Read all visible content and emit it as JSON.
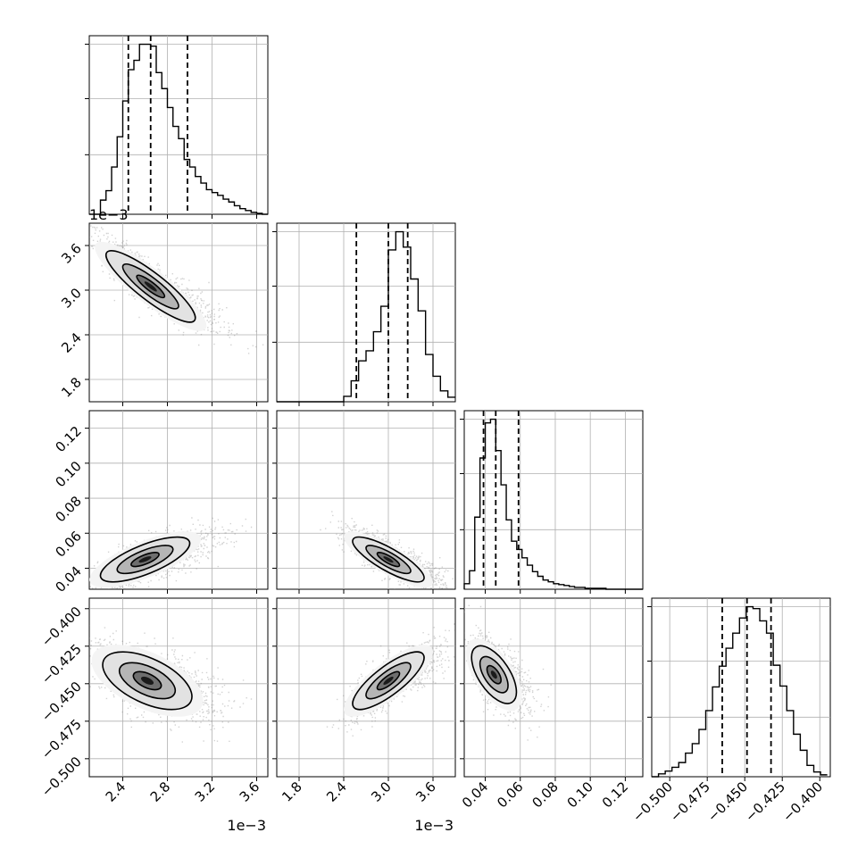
{
  "figure": {
    "offset_labels": {
      "x0": "1e−3",
      "x1": "1e−3",
      "y1": "1e−3"
    }
  },
  "chart_data": {
    "type": "corner",
    "grid": true,
    "colors": {
      "line": "#000000",
      "grid": "#b0b0b0",
      "scatter": "#7f7f7f"
    },
    "params": [
      {
        "range": [
          2.1,
          3.7
        ],
        "ticks": [
          2.4,
          2.8,
          3.2,
          3.6
        ],
        "tick_labels": [
          "2.4",
          "2.8",
          "3.2",
          "3.6"
        ],
        "offset": "1e−3",
        "quantiles": [
          2.45,
          2.65,
          2.98
        ],
        "hist": {
          "edges": [
            2.1,
            2.15,
            2.2,
            2.25,
            2.3,
            2.35,
            2.4,
            2.45,
            2.5,
            2.55,
            2.6,
            2.65,
            2.7,
            2.75,
            2.8,
            2.85,
            2.9,
            2.95,
            3.0,
            3.05,
            3.1,
            3.15,
            3.2,
            3.25,
            3.3,
            3.35,
            3.4,
            3.45,
            3.5,
            3.55,
            3.6,
            3.65,
            3.7
          ],
          "counts": [
            0,
            0,
            15,
            25,
            50,
            82,
            120,
            153,
            163,
            180,
            180,
            178,
            150,
            133,
            113,
            93,
            80,
            58,
            50,
            40,
            33,
            26,
            23,
            20,
            16,
            13,
            9,
            6,
            4,
            2,
            1,
            0
          ]
        }
      },
      {
        "range": [
          1.5,
          3.9
        ],
        "ticks": [
          1.8,
          2.4,
          3.0,
          3.6
        ],
        "tick_labels": [
          "1.8",
          "2.4",
          "3.0",
          "3.6"
        ],
        "offset": "1e−3",
        "quantiles": [
          2.57,
          3.0,
          3.26
        ],
        "hist": {
          "edges": [
            1.5,
            1.6,
            1.7,
            1.8,
            1.9,
            2.0,
            2.1,
            2.2,
            2.3,
            2.4,
            2.5,
            2.6,
            2.7,
            2.8,
            2.9,
            3.0,
            3.1,
            3.2,
            3.3,
            3.4,
            3.5,
            3.6,
            3.7,
            3.8,
            3.9
          ],
          "counts": [
            0,
            0,
            0,
            0,
            0,
            0,
            0,
            0,
            0,
            6,
            23,
            45,
            56,
            77,
            105,
            167,
            187,
            170,
            135,
            100,
            52,
            28,
            12,
            5
          ]
        }
      },
      {
        "range": [
          0.028,
          0.13
        ],
        "ticks": [
          0.04,
          0.06,
          0.08,
          0.1,
          0.12
        ],
        "tick_labels": [
          "0.04",
          "0.06",
          "0.08",
          "0.10",
          "0.12"
        ],
        "offset": "",
        "quantiles": [
          0.039,
          0.046,
          0.059
        ],
        "hist": {
          "edges": [
            0.028,
            0.031,
            0.034,
            0.037,
            0.04,
            0.043,
            0.046,
            0.049,
            0.052,
            0.055,
            0.058,
            0.061,
            0.064,
            0.067,
            0.07,
            0.073,
            0.076,
            0.079,
            0.082,
            0.085,
            0.088,
            0.091,
            0.094,
            0.097,
            0.1,
            0.103,
            0.106,
            0.109,
            0.112,
            0.115,
            0.118,
            0.121,
            0.124,
            0.127,
            0.13
          ],
          "counts": [
            6,
            20,
            78,
            142,
            180,
            184,
            150,
            113,
            75,
            52,
            43,
            34,
            26,
            19,
            14,
            10,
            8,
            6,
            5,
            4,
            3,
            2,
            2,
            1,
            1,
            1,
            1,
            0,
            0,
            0,
            0,
            0,
            0,
            0
          ]
        }
      },
      {
        "range": [
          -0.512,
          -0.393
        ],
        "ticks": [
          -0.5,
          -0.475,
          -0.45,
          -0.425,
          -0.4
        ],
        "tick_labels": [
          "−0.500",
          "−0.475",
          "−0.450",
          "−0.425",
          "−0.400"
        ],
        "offset": "",
        "quantiles": [
          -0.465,
          -0.4485,
          -0.4325
        ],
        "hist": {
          "edges": [
            -0.512,
            -0.5075,
            -0.503,
            -0.4985,
            -0.494,
            -0.4895,
            -0.485,
            -0.4805,
            -0.476,
            -0.4715,
            -0.467,
            -0.4625,
            -0.458,
            -0.4535,
            -0.449,
            -0.4445,
            -0.44,
            -0.4355,
            -0.431,
            -0.4265,
            -0.422,
            -0.4175,
            -0.413,
            -0.4085,
            -0.404,
            -0.3995,
            -0.395
          ],
          "counts": [
            0,
            3,
            6,
            10,
            15,
            25,
            35,
            50,
            70,
            95,
            117,
            136,
            152,
            168,
            180,
            178,
            165,
            152,
            118,
            96,
            70,
            45,
            28,
            12,
            5,
            2
          ]
        }
      }
    ],
    "pairs": [
      {
        "row": 1,
        "col": 0,
        "center": [
          2.65,
          3.05
        ],
        "sigma": [
          0.25,
          0.3
        ],
        "rho": -0.88,
        "levels_sigma": [
          0.5,
          1.0,
          1.6
        ]
      },
      {
        "row": 2,
        "col": 0,
        "center": [
          2.6,
          0.045
        ],
        "sigma": [
          0.25,
          0.008
        ],
        "rho": 0.72,
        "levels_sigma": [
          0.5,
          1.0,
          1.6
        ]
      },
      {
        "row": 2,
        "col": 1,
        "center": [
          3.0,
          0.045
        ],
        "sigma": [
          0.3,
          0.008
        ],
        "rho": -0.82,
        "levels_sigma": [
          0.5,
          1.0,
          1.6
        ]
      },
      {
        "row": 3,
        "col": 0,
        "center": [
          2.62,
          -0.448
        ],
        "sigma": [
          0.25,
          0.012
        ],
        "rho": -0.55,
        "levels_sigma": [
          0.5,
          1.0,
          1.6
        ]
      },
      {
        "row": 3,
        "col": 1,
        "center": [
          3.0,
          -0.448
        ],
        "sigma": [
          0.3,
          0.012
        ],
        "rho": 0.8,
        "levels_sigma": [
          0.5,
          1.0,
          1.6
        ]
      },
      {
        "row": 3,
        "col": 2,
        "center": [
          0.045,
          -0.444
        ],
        "sigma": [
          0.008,
          0.012
        ],
        "rho": -0.6,
        "levels_sigma": [
          0.5,
          1.0,
          1.6
        ]
      }
    ]
  }
}
